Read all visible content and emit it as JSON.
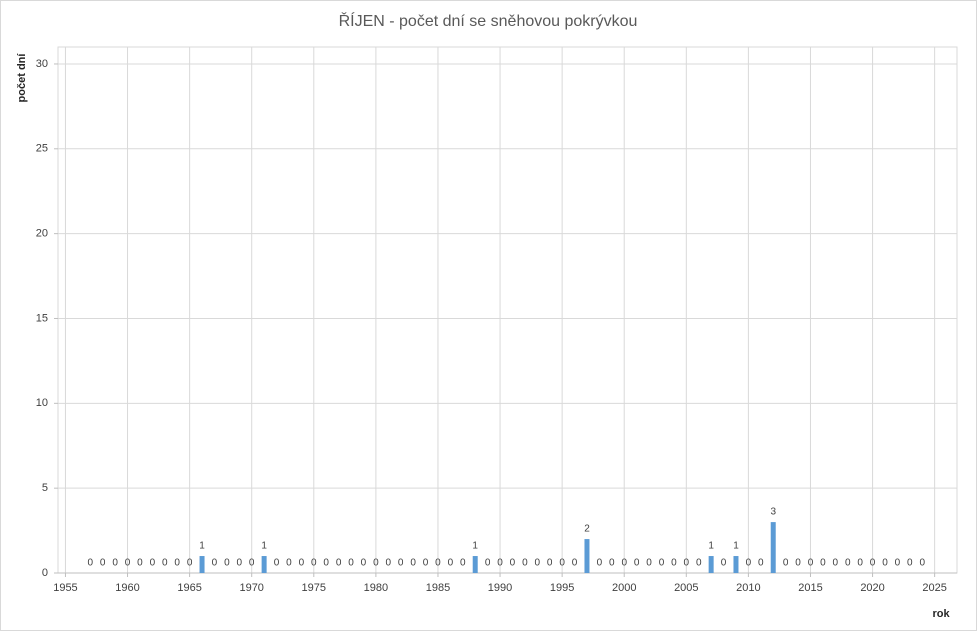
{
  "chart_data": {
    "type": "bar",
    "title": "ŘÍJEN - počet dní se sněhovou pokrývkou",
    "x_label": "rok",
    "y_label": "počet dní",
    "x": [
      1957,
      1958,
      1959,
      1960,
      1961,
      1962,
      1963,
      1964,
      1965,
      1966,
      1967,
      1968,
      1969,
      1970,
      1971,
      1972,
      1973,
      1974,
      1975,
      1976,
      1977,
      1978,
      1979,
      1980,
      1981,
      1982,
      1983,
      1984,
      1985,
      1986,
      1987,
      1988,
      1989,
      1990,
      1991,
      1992,
      1993,
      1994,
      1995,
      1996,
      1997,
      1998,
      1999,
      2000,
      2001,
      2002,
      2003,
      2004,
      2005,
      2006,
      2007,
      2008,
      2009,
      2010,
      2011,
      2012,
      2013,
      2014,
      2015,
      2016,
      2017,
      2018,
      2019,
      2020,
      2021,
      2022,
      2023,
      2024
    ],
    "values": [
      0,
      0,
      0,
      0,
      0,
      0,
      0,
      0,
      0,
      1,
      0,
      0,
      0,
      0,
      1,
      0,
      0,
      0,
      0,
      0,
      0,
      0,
      0,
      0,
      0,
      0,
      0,
      0,
      0,
      0,
      0,
      1,
      0,
      0,
      0,
      0,
      0,
      0,
      0,
      0,
      2,
      0,
      0,
      0,
      0,
      0,
      0,
      0,
      0,
      0,
      1,
      0,
      1,
      0,
      0,
      3,
      0,
      0,
      0,
      0,
      0,
      0,
      0,
      0,
      0,
      0,
      0,
      0
    ],
    "color": "#5b9bd5",
    "xlim": [
      1954.4,
      2026.8
    ],
    "xticks": [
      1955,
      1960,
      1965,
      1970,
      1975,
      1980,
      1985,
      1990,
      1995,
      2000,
      2005,
      2010,
      2015,
      2020,
      2025
    ],
    "ylim": [
      0,
      31
    ],
    "yticks": [
      0,
      5,
      10,
      15,
      20,
      25,
      30
    ],
    "grid": true
  }
}
